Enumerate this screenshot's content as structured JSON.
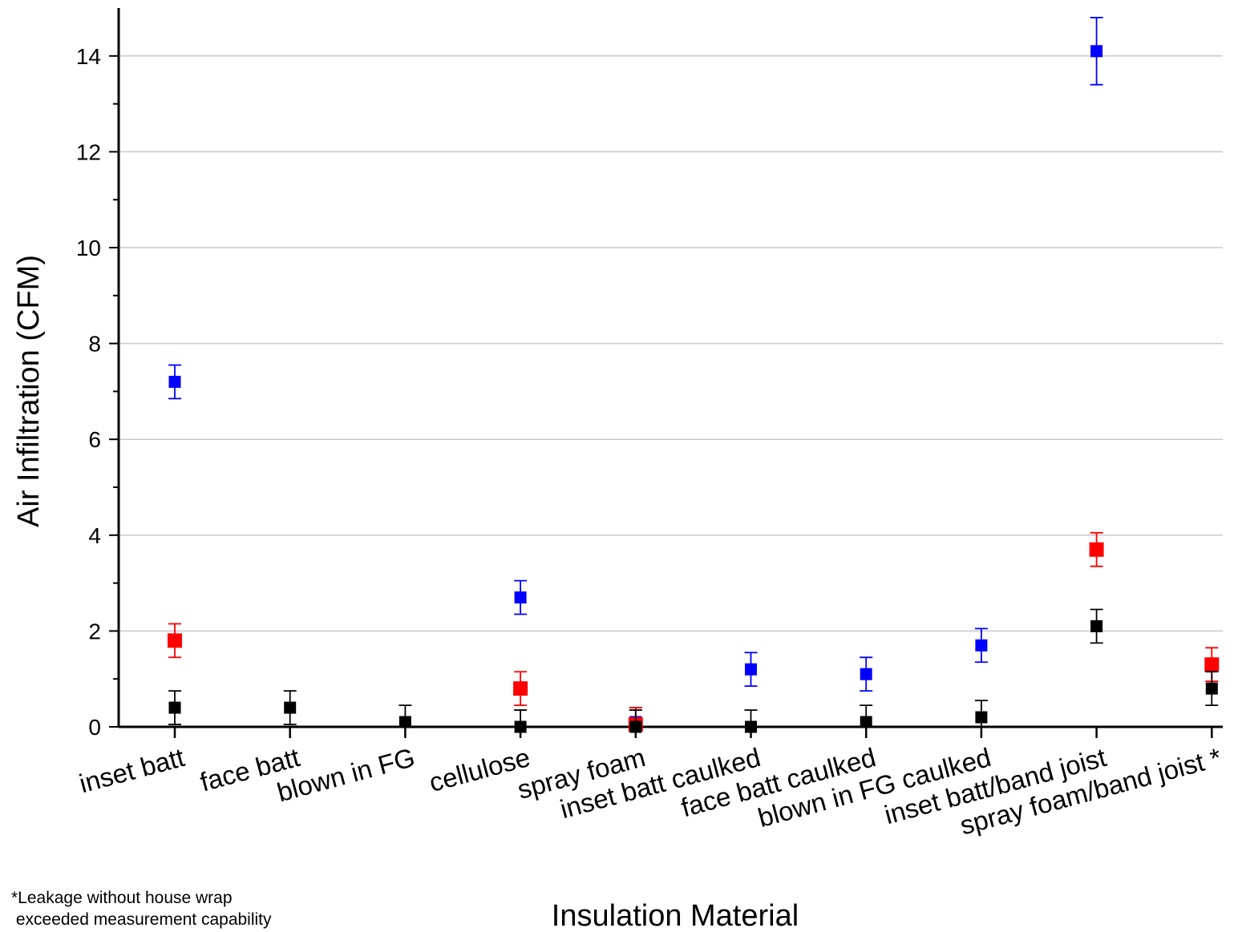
{
  "chart_data": {
    "type": "scatter",
    "title": "",
    "xlabel": "Insulation Material",
    "ylabel": "Air Infiltration (CFM)",
    "ylim": [
      0,
      15
    ],
    "yticks": [
      0,
      2,
      4,
      6,
      8,
      10,
      12,
      14
    ],
    "grid": "horizontal",
    "categories": [
      "inset batt",
      "face batt",
      "blown in FG",
      "cellulose",
      "spray foam",
      "inset batt caulked",
      "face batt caulked",
      "blown in FG caulked",
      "inset batt/band joist",
      "spray foam/band joist *"
    ],
    "series": [
      {
        "color": "#0000ff",
        "marker": "square",
        "values": [
          7.2,
          null,
          null,
          2.7,
          0.1,
          1.2,
          1.1,
          1.7,
          14.1,
          null
        ],
        "errors": [
          0.35,
          null,
          null,
          0.35,
          0.3,
          0.35,
          0.35,
          0.35,
          0.7,
          null
        ]
      },
      {
        "color": "#ff0000",
        "marker": "square",
        "values": [
          1.8,
          null,
          null,
          0.8,
          0.05,
          null,
          null,
          null,
          3.7,
          1.3
        ],
        "errors": [
          0.35,
          null,
          null,
          0.35,
          0.35,
          null,
          null,
          null,
          0.35,
          0.35
        ]
      },
      {
        "color": "#000000",
        "marker": "square",
        "values": [
          0.4,
          0.4,
          0.1,
          0.0,
          0.0,
          0.0,
          0.1,
          0.2,
          2.1,
          0.8
        ],
        "errors": [
          0.35,
          0.35,
          0.35,
          0.35,
          0.35,
          0.35,
          0.35,
          0.35,
          0.35,
          0.35
        ]
      }
    ]
  },
  "footnote": {
    "line1": "*Leakage without house wrap",
    "line2": " exceeded measurement capability"
  }
}
